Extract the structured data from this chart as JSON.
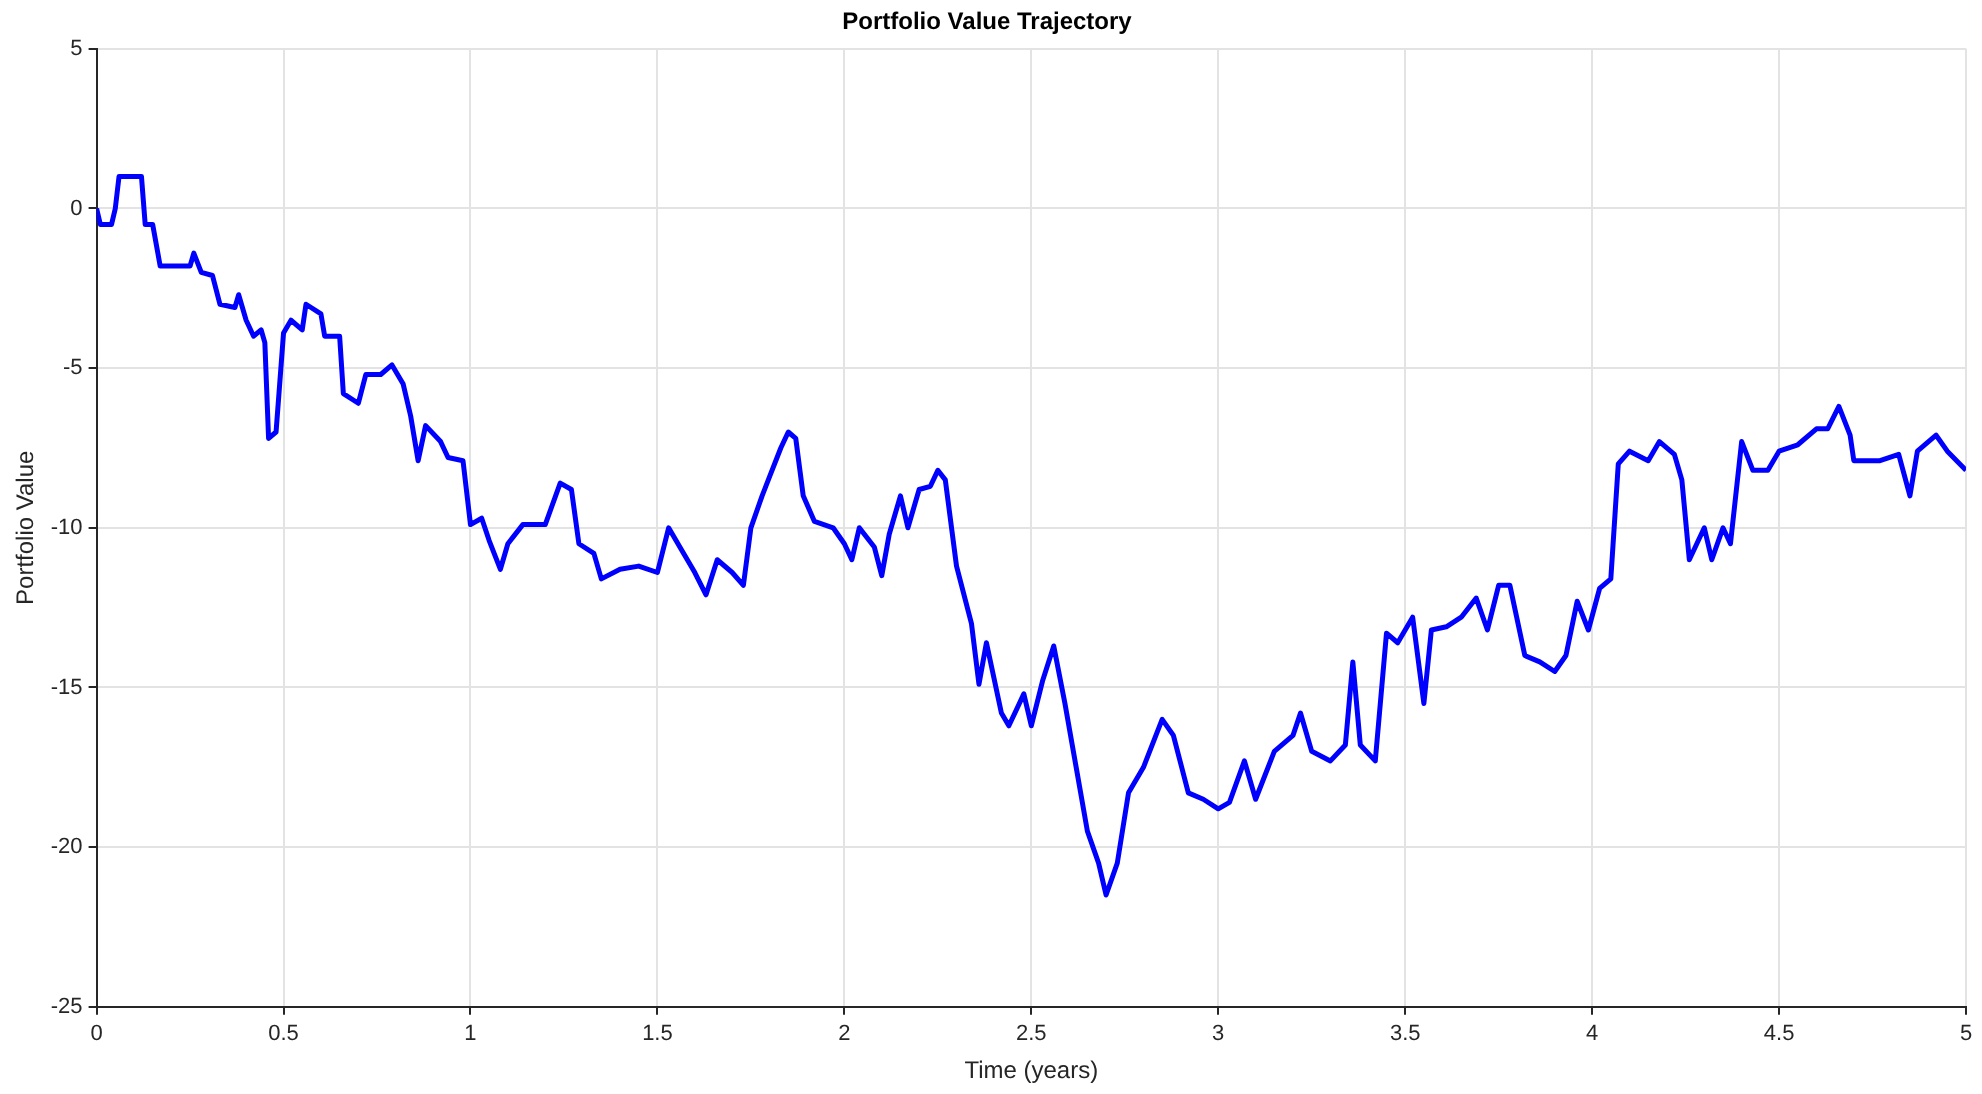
{
  "chart_data": {
    "type": "line",
    "title": "Portfolio Value Trajectory",
    "xlabel": "Time (years)",
    "ylabel": "Portfolio Value",
    "xlim": [
      0,
      5
    ],
    "xticks": [
      0,
      0.5,
      1,
      1.5,
      2,
      2.5,
      3,
      3.5,
      4,
      4.5,
      5
    ],
    "ylim": [
      -25,
      5
    ],
    "yticks": [
      -25,
      -20,
      -15,
      -10,
      -5,
      0,
      5
    ],
    "grid": true,
    "legend": false,
    "marker": "none",
    "line_style": "solid",
    "series": [
      {
        "color": "#0000ff",
        "x": [
          0,
          0.01,
          0.04,
          0.05,
          0.06,
          0.12,
          0.13,
          0.15,
          0.17,
          0.25,
          0.26,
          0.28,
          0.31,
          0.33,
          0.37,
          0.38,
          0.4,
          0.42,
          0.44,
          0.45,
          0.46,
          0.48,
          0.5,
          0.52,
          0.55,
          0.56,
          0.6,
          0.61,
          0.65,
          0.66,
          0.7,
          0.72,
          0.76,
          0.79,
          0.82,
          0.84,
          0.86,
          0.88,
          0.92,
          0.94,
          0.98,
          1.0,
          1.03,
          1.05,
          1.08,
          1.1,
          1.14,
          1.2,
          1.24,
          1.27,
          1.29,
          1.33,
          1.35,
          1.4,
          1.45,
          1.5,
          1.53,
          1.56,
          1.6,
          1.63,
          1.66,
          1.7,
          1.73,
          1.75,
          1.78,
          1.8,
          1.83,
          1.85,
          1.87,
          1.89,
          1.92,
          1.97,
          2.0,
          2.02,
          2.04,
          2.08,
          2.1,
          2.12,
          2.15,
          2.17,
          2.2,
          2.23,
          2.25,
          2.27,
          2.3,
          2.34,
          2.36,
          2.38,
          2.42,
          2.44,
          2.48,
          2.5,
          2.53,
          2.56,
          2.59,
          2.62,
          2.65,
          2.68,
          2.7,
          2.73,
          2.76,
          2.8,
          2.85,
          2.88,
          2.92,
          2.96,
          3.0,
          3.03,
          3.07,
          3.1,
          3.15,
          3.2,
          3.22,
          3.25,
          3.3,
          3.34,
          3.36,
          3.38,
          3.42,
          3.45,
          3.48,
          3.52,
          3.55,
          3.57,
          3.61,
          3.65,
          3.69,
          3.72,
          3.75,
          3.78,
          3.82,
          3.86,
          3.9,
          3.93,
          3.96,
          3.99,
          4.02,
          4.05,
          4.07,
          4.1,
          4.15,
          4.18,
          4.22,
          4.24,
          4.26,
          4.3,
          4.32,
          4.35,
          4.37,
          4.4,
          4.43,
          4.47,
          4.5,
          4.55,
          4.6,
          4.63,
          4.66,
          4.69,
          4.7,
          4.77,
          4.82,
          4.85,
          4.87,
          4.92,
          4.95,
          5.0
        ],
        "values": [
          0,
          -0.5,
          -0.5,
          0,
          1,
          1,
          -0.5,
          -0.5,
          -1.8,
          -1.8,
          -1.4,
          -2,
          -2.1,
          -3,
          -3.1,
          -2.7,
          -3.5,
          -4,
          -3.8,
          -4.2,
          -7.2,
          -7,
          -3.9,
          -3.5,
          -3.8,
          -3,
          -3.3,
          -4,
          -4,
          -5.8,
          -6.1,
          -5.2,
          -5.2,
          -4.9,
          -5.5,
          -6.5,
          -7.9,
          -6.8,
          -7.3,
          -7.8,
          -7.9,
          -9.9,
          -9.7,
          -10.4,
          -11.3,
          -10.5,
          -9.9,
          -9.9,
          -8.6,
          -8.8,
          -10.5,
          -10.8,
          -11.6,
          -11.3,
          -11.2,
          -11.4,
          -10,
          -10.6,
          -11.4,
          -12.1,
          -11,
          -11.4,
          -11.8,
          -10,
          -9,
          -8.4,
          -7.5,
          -7,
          -7.2,
          -9,
          -9.8,
          -10,
          -10.5,
          -11,
          -10,
          -10.6,
          -11.5,
          -10.2,
          -9,
          -10,
          -8.8,
          -8.7,
          -8.2,
          -8.5,
          -11.2,
          -13,
          -14.9,
          -13.6,
          -15.8,
          -16.2,
          -15.2,
          -16.2,
          -14.8,
          -13.7,
          -15.5,
          -17.5,
          -19.5,
          -20.5,
          -21.5,
          -20.5,
          -18.3,
          -17.5,
          -16,
          -16.5,
          -18.3,
          -18.5,
          -18.8,
          -18.6,
          -17.3,
          -18.5,
          -17,
          -16.5,
          -15.8,
          -17,
          -17.3,
          -16.8,
          -14.2,
          -16.8,
          -17.3,
          -13.3,
          -13.6,
          -12.8,
          -15.5,
          -13.2,
          -13.1,
          -12.8,
          -12.2,
          -13.2,
          -11.8,
          -11.8,
          -14,
          -14.2,
          -14.5,
          -14,
          -12.3,
          -13.2,
          -11.9,
          -11.6,
          -8,
          -7.6,
          -7.9,
          -7.3,
          -7.7,
          -8.5,
          -11,
          -10,
          -11,
          -10,
          -10.5,
          -7.3,
          -8.2,
          -8.2,
          -7.6,
          -7.4,
          -6.9,
          -6.9,
          -6.2,
          -7.1,
          -7.9,
          -7.9,
          -7.7,
          -9,
          -7.6,
          -7.1,
          -7.6,
          -8.2
        ]
      }
    ]
  }
}
